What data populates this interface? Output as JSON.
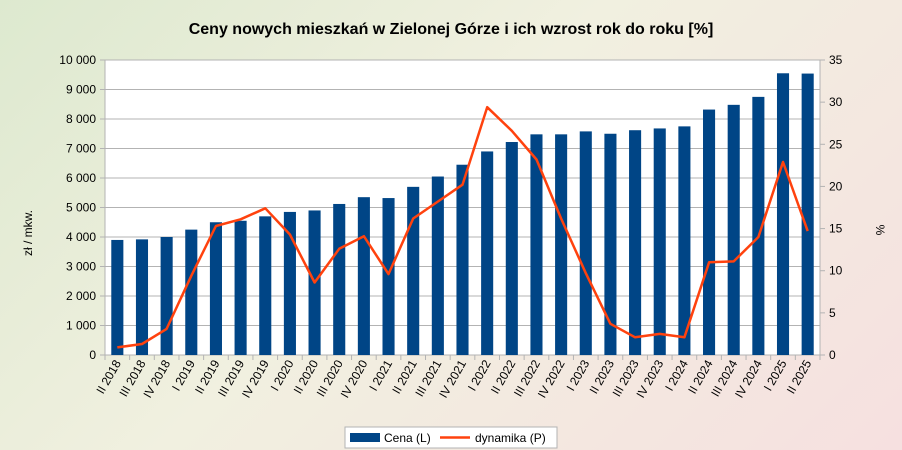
{
  "chart_data": {
    "type": "bar",
    "title": "Ceny nowych mieszkań w Zielonej Górze i ich wzrost rok do roku [%]",
    "ylabel_left": "zł / mkw.",
    "ylabel_right": "%",
    "ylim_left": [
      0,
      10000
    ],
    "ylim_right": [
      0,
      35
    ],
    "yticks_left": [
      "0",
      "1 000",
      "2 000",
      "3 000",
      "4 000",
      "5 000",
      "6 000",
      "7 000",
      "8 000",
      "9 000",
      "10 000"
    ],
    "yticks_right": [
      "0",
      "5",
      "10",
      "15",
      "20",
      "25",
      "30",
      "35"
    ],
    "categories": [
      "II 2018",
      "III 2018",
      "IV 2018",
      "I 2019",
      "II 2019",
      "III 2019",
      "IV 2019",
      "I 2020",
      "II 2020",
      "III 2020",
      "IV 2020",
      "I 2021",
      "II 2021",
      "III 2021",
      "IV 2021",
      "I 2022",
      "II 2022",
      "III 2022",
      "IV 2022",
      "I 2023",
      "II 2023",
      "III 2023",
      "IV 2023",
      "I 2024",
      "II 2024",
      "III 2024",
      "IV 2024",
      "I 2025",
      "II 2025"
    ],
    "series": [
      {
        "name": "Cena (L)",
        "kind": "bar",
        "axis": "left",
        "color": "#004586",
        "values": [
          3900,
          3920,
          4000,
          4250,
          4500,
          4550,
          4700,
          4850,
          4900,
          5120,
          5350,
          5320,
          5700,
          6050,
          6450,
          6900,
          7220,
          7480,
          7480,
          7580,
          7500,
          7620,
          7680,
          7750,
          8320,
          8480,
          8750,
          9550,
          9540
        ]
      },
      {
        "name": "dynamika (P)",
        "kind": "line",
        "axis": "right",
        "color": "#ff420e",
        "values": [
          0.9,
          1.3,
          3.1,
          9.4,
          15.3,
          16.1,
          17.4,
          14.3,
          8.6,
          12.6,
          14.1,
          9.6,
          16.2,
          18.2,
          20.2,
          29.4,
          26.6,
          23.2,
          16.2,
          9.7,
          3.7,
          2.1,
          2.5,
          2.1,
          11.0,
          11.1,
          14.0,
          22.9,
          14.7
        ]
      }
    ],
    "grid": true,
    "legend_position": "bottom"
  }
}
